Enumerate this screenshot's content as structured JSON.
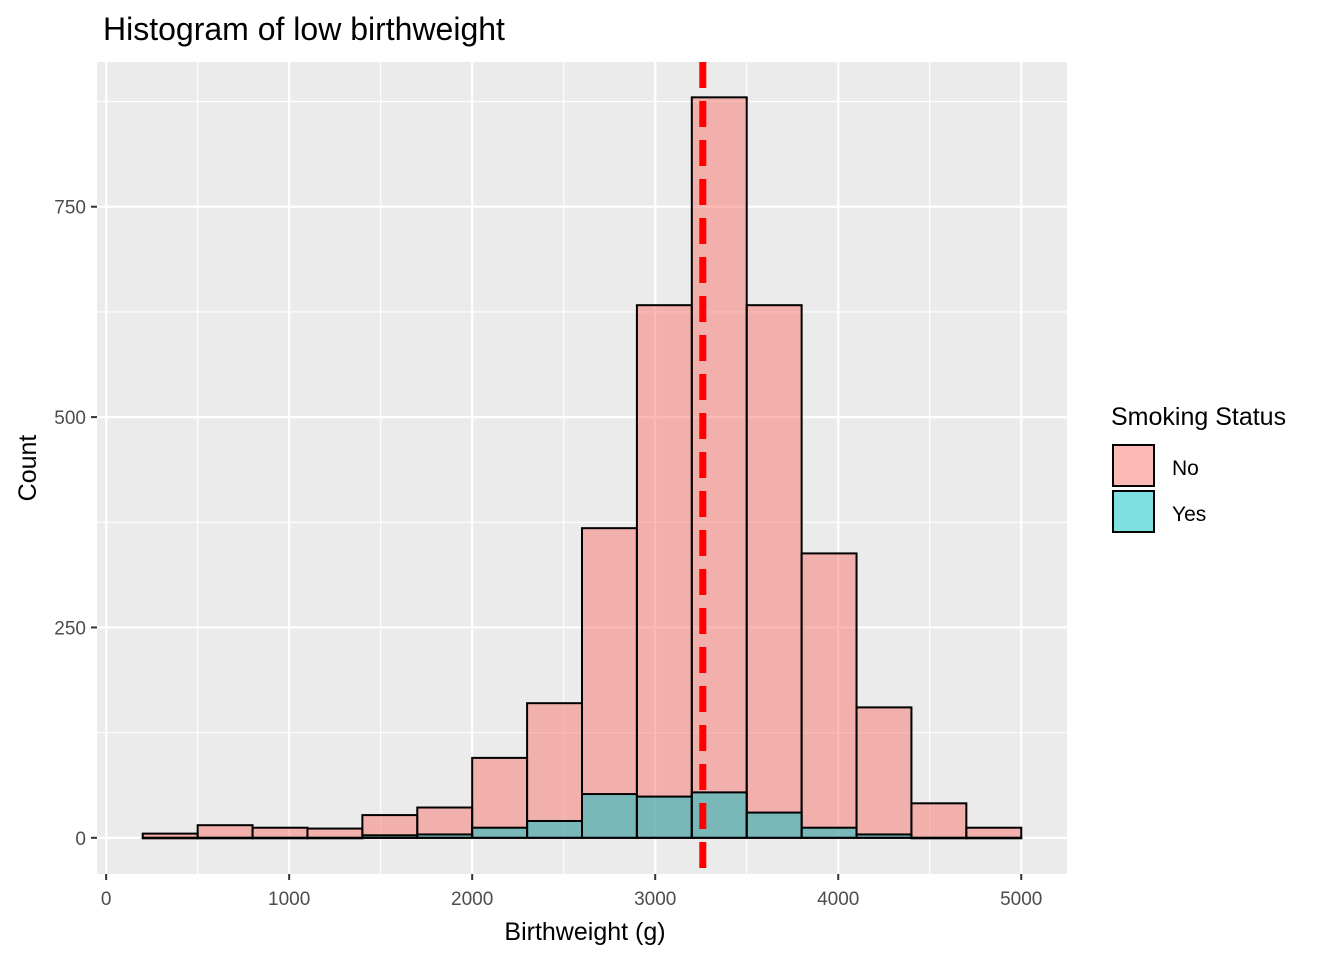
{
  "chart_data": {
    "type": "bar",
    "title": "Histogram of low birthweight",
    "xlabel": "Birthweight (g)",
    "ylabel": "Count",
    "xlim": [
      -50,
      5250
    ],
    "ylim": [
      -43,
      922
    ],
    "x_ticks": [
      0,
      1000,
      2000,
      3000,
      4000,
      5000
    ],
    "x_tick_labels": [
      "0",
      "1000",
      "2000",
      "3000",
      "4000",
      "5000"
    ],
    "y_ticks": [
      0,
      250,
      500,
      750
    ],
    "y_tick_labels": [
      "0",
      "250",
      "500",
      "750"
    ],
    "grid": true,
    "bin_edges": [
      200,
      500,
      800,
      1100,
      1400,
      1700,
      2000,
      2300,
      2600,
      2900,
      3200,
      3500,
      3800,
      4100,
      4400,
      4700,
      5000
    ],
    "series": [
      {
        "name": "No",
        "color": "#F8766D",
        "values": [
          5,
          15,
          12,
          11,
          27,
          36,
          95,
          160,
          368,
          633,
          880,
          633,
          338,
          155,
          41,
          12
        ]
      },
      {
        "name": "Yes",
        "color": "#00BFC4",
        "values": [
          0,
          0,
          0,
          0,
          3,
          4,
          12,
          20,
          52,
          49,
          54,
          30,
          12,
          4,
          0,
          0
        ]
      }
    ],
    "reference_line": {
      "x": 3260,
      "color": "#FF0000",
      "style": "dashed"
    },
    "legend": {
      "title": "Smoking Status",
      "position": "right",
      "items": [
        "No",
        "Yes"
      ]
    }
  }
}
